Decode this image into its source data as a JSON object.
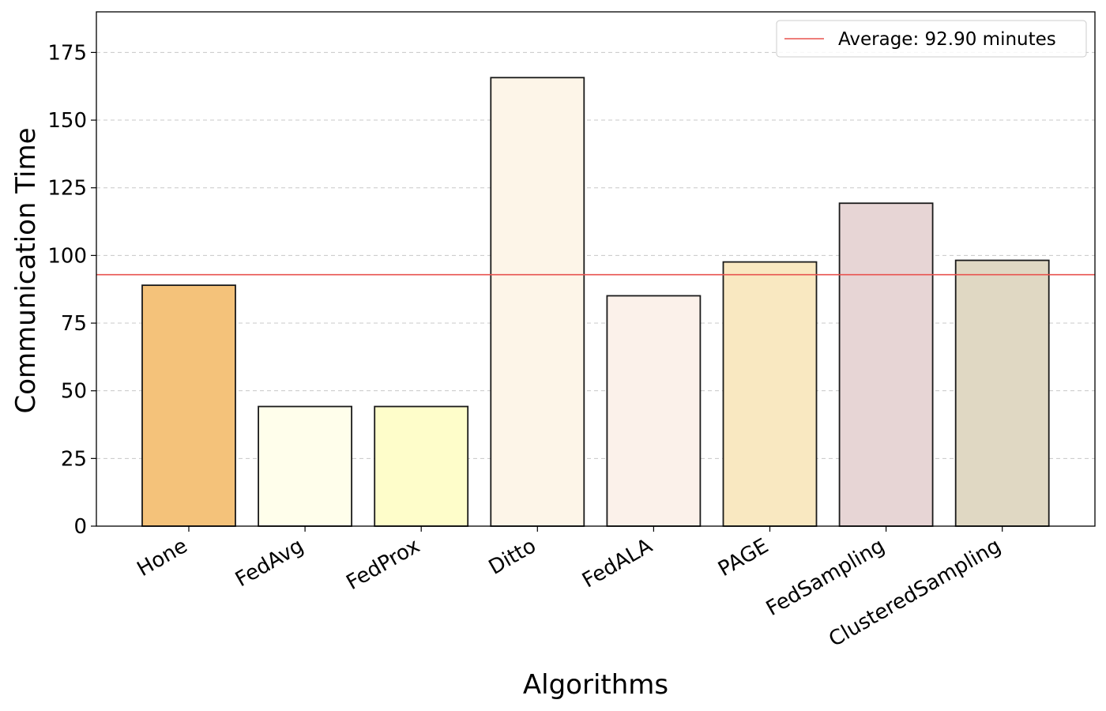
{
  "chart_data": {
    "type": "bar",
    "title": "",
    "xlabel": "Algorithms",
    "ylabel": "Communication Time",
    "categories": [
      "Hone",
      "FedAvg",
      "FedProx",
      "Ditto",
      "FedALA",
      "PAGE",
      "FedSampling",
      "ClusteredSampling"
    ],
    "values": [
      89.0,
      44.2,
      44.2,
      165.7,
      85.1,
      97.6,
      119.3,
      98.2
    ],
    "colors": [
      "#f4c27a",
      "#fffeeb",
      "#fefdca",
      "#fdf5e8",
      "#fbf1ea",
      "#f9e8c1",
      "#e7d5d5",
      "#e0d8c3"
    ],
    "ylim": [
      0,
      190
    ],
    "yticks": [
      0,
      25,
      50,
      75,
      100,
      125,
      150,
      175
    ],
    "grid": "y-dashed",
    "average_line": {
      "value": 92.9,
      "label": "Average: 92.90 minutes",
      "color": "#e8534f"
    },
    "legend_position": "top-right"
  }
}
